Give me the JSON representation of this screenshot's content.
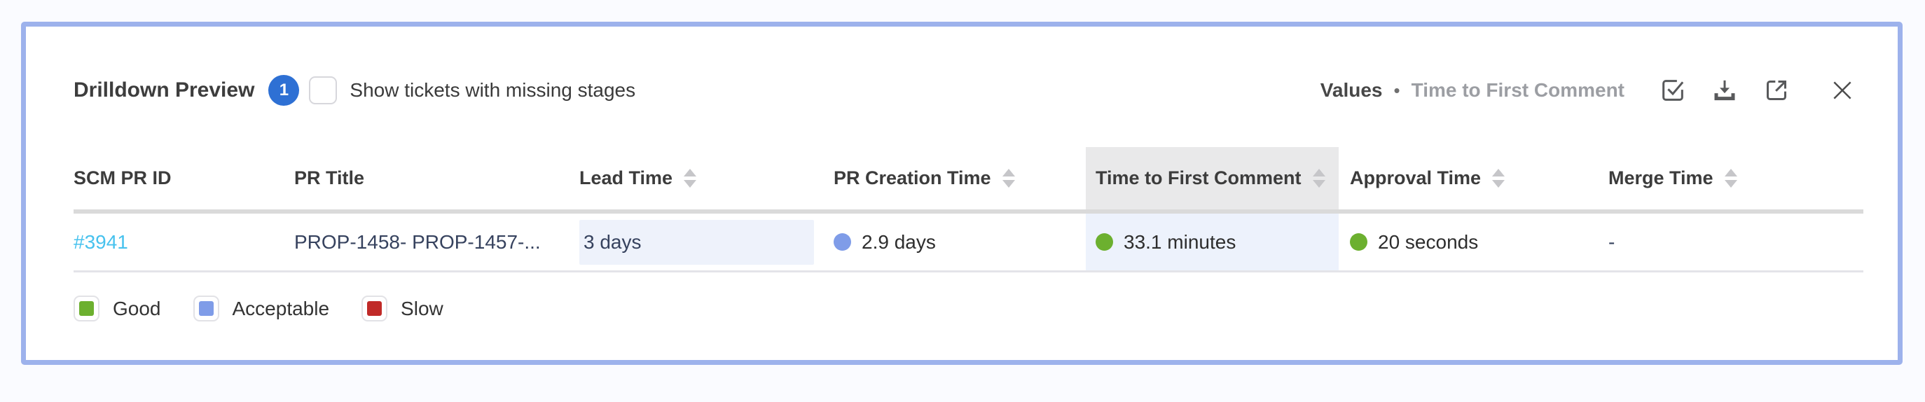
{
  "colors": {
    "panel_border": "#9db2ec",
    "badge_bg": "#2e70d4",
    "link": "#47c2ee",
    "good": "#6cb02f",
    "acceptable": "#7f9ce8",
    "slow": "#c02a28",
    "header_column_highlight_bg": "#e9e9ea",
    "cell_column_highlight_bg": "#edf2fc",
    "lead_cell_highlight_bg": "#eef2fb"
  },
  "header": {
    "title": "Drilldown Preview",
    "badge_count": "1",
    "checkbox_label": "Show tickets with missing stages",
    "checkbox_checked": false,
    "right": {
      "primary": "Values",
      "separator": "•",
      "secondary": "Time to First Comment"
    }
  },
  "table": {
    "columns": [
      {
        "key": "scm_pr_id",
        "label": "SCM PR ID",
        "sortable": false,
        "highlighted": false
      },
      {
        "key": "pr_title",
        "label": "PR Title",
        "sortable": false,
        "highlighted": false
      },
      {
        "key": "lead_time",
        "label": "Lead Time",
        "sortable": true,
        "highlighted": false
      },
      {
        "key": "pr_creation_time",
        "label": "PR Creation Time",
        "sortable": true,
        "highlighted": false
      },
      {
        "key": "time_to_first_comment",
        "label": "Time to First Comment",
        "sortable": true,
        "highlighted": true
      },
      {
        "key": "approval_time",
        "label": "Approval Time",
        "sortable": true,
        "highlighted": false
      },
      {
        "key": "merge_time",
        "label": "Merge Time",
        "sortable": true,
        "highlighted": false
      }
    ],
    "rows": [
      {
        "cells": {
          "scm_pr_id": {
            "text": "#3941",
            "link": true
          },
          "pr_title": {
            "text": "PROP-1458- PROP-1457-...",
            "navy": true
          },
          "lead_time": {
            "text": "3 days",
            "highlight": true
          },
          "pr_creation_time": {
            "text": "2.9 days",
            "dot": "#7f9ce8"
          },
          "time_to_first_comment": {
            "text": "33.1 minutes",
            "dot": "#6cb02f"
          },
          "approval_time": {
            "text": "20 seconds",
            "dot": "#6cb02f"
          },
          "merge_time": {
            "text": "-",
            "navy": true
          }
        }
      }
    ]
  },
  "legend": [
    {
      "label": "Good",
      "color": "#6cb02f"
    },
    {
      "label": "Acceptable",
      "color": "#7f9ce8"
    },
    {
      "label": "Slow",
      "color": "#c02a28"
    }
  ]
}
